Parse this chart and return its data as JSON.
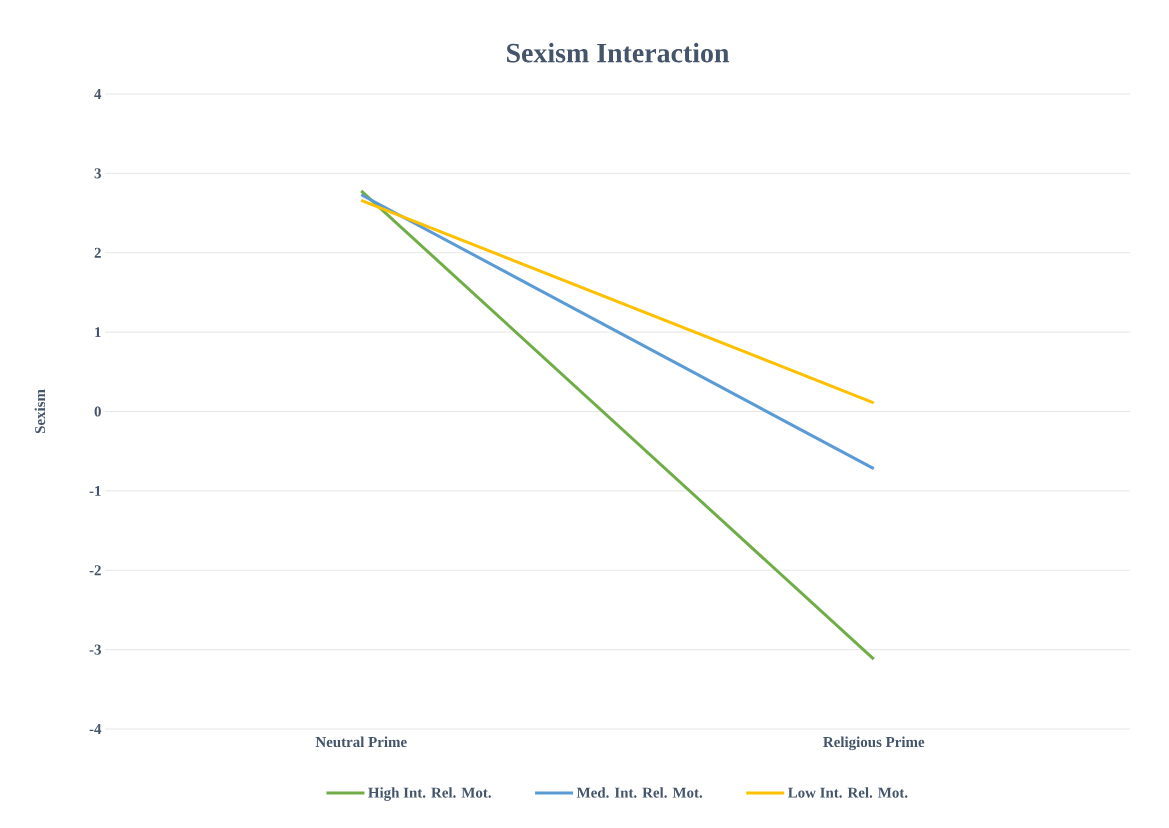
{
  "chart_data": {
    "type": "line",
    "title": "Sexism Interaction",
    "ylabel": "Sexism",
    "categories": [
      "Neutral Prime",
      "Religious Prime"
    ],
    "series": [
      {
        "name": "High Int. Rel. Mot.",
        "color": "#70ad47",
        "values": [
          2.78,
          -3.12
        ]
      },
      {
        "name": "Med. Int. Rel. Mot.",
        "color": "#5b9bd5",
        "values": [
          2.73,
          -0.72
        ]
      },
      {
        "name": "Low Int. Rel. Mot.",
        "color": "#ffc000",
        "values": [
          2.66,
          0.11
        ]
      }
    ],
    "ylim": [
      -4,
      4
    ],
    "yticks": [
      -4,
      -3,
      -2,
      -1,
      0,
      1,
      2,
      3,
      4
    ],
    "grid": "y",
    "legend": "bottom",
    "marker": "none",
    "line_style": "solid"
  }
}
